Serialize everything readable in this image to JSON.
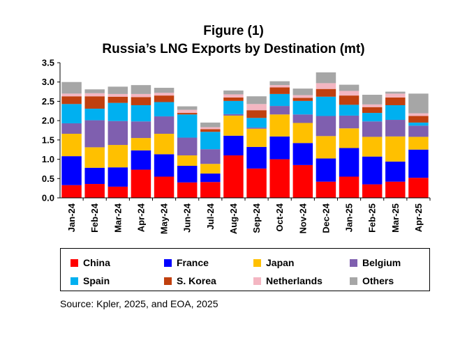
{
  "header": {
    "title": "Figure (1)",
    "subtitle": "Russia’s LNG Exports by Destination  (mt)"
  },
  "source": "Source: Kpler, 2025, and EOA, 2025",
  "chart_data": {
    "type": "bar",
    "stacked": true,
    "title": "Figure (1)",
    "subtitle": "Russia’s LNG Exports by Destination  (mt)",
    "xlabel": "",
    "ylabel": "",
    "ylim": [
      0,
      3.5
    ],
    "yticks": [
      "0.0",
      "0.5",
      "1.0",
      "1.5",
      "2.0",
      "2.5",
      "3.0",
      "3.5"
    ],
    "grid": false,
    "legend_position": "bottom",
    "categories": [
      "Jan-24",
      "Feb-24",
      "Mar-24",
      "Apr-24",
      "May-24",
      "Jun-24",
      "Jul-24",
      "Aug-24",
      "Sep-24",
      "Oct-24",
      "Nov-24",
      "Dec-24",
      "Jan-25",
      "Feb-25",
      "Mar-25",
      "Apr-25"
    ],
    "series": [
      {
        "name": "China",
        "color": "#ff0000",
        "values": [
          0.33,
          0.36,
          0.29,
          0.73,
          0.55,
          0.4,
          0.41,
          1.1,
          0.76,
          1.0,
          0.85,
          0.42,
          0.55,
          0.35,
          0.42,
          0.52
        ]
      },
      {
        "name": "France",
        "color": "#0000ff",
        "values": [
          0.75,
          0.42,
          0.5,
          0.5,
          0.58,
          0.43,
          0.22,
          0.51,
          0.56,
          0.59,
          0.57,
          0.6,
          0.74,
          0.72,
          0.52,
          0.73
        ]
      },
      {
        "name": "Japan",
        "color": "#ffc000",
        "values": [
          0.58,
          0.53,
          0.58,
          0.32,
          0.53,
          0.27,
          0.25,
          0.52,
          0.47,
          0.57,
          0.52,
          0.58,
          0.51,
          0.51,
          0.65,
          0.33
        ]
      },
      {
        "name": "Belgium",
        "color": "#7f5faf",
        "values": [
          0.27,
          0.7,
          0.62,
          0.43,
          0.45,
          0.46,
          0.38,
          0.04,
          0.03,
          0.22,
          0.22,
          0.52,
          0.33,
          0.4,
          0.43,
          0.29
        ]
      },
      {
        "name": "Spain",
        "color": "#00b0f0",
        "values": [
          0.5,
          0.3,
          0.47,
          0.42,
          0.37,
          0.6,
          0.45,
          0.34,
          0.25,
          0.31,
          0.35,
          0.5,
          0.28,
          0.22,
          0.38,
          0.08
        ]
      },
      {
        "name": "S. Korea",
        "color": "#c0400f",
        "values": [
          0.2,
          0.32,
          0.16,
          0.21,
          0.17,
          0.04,
          0.07,
          0.09,
          0.2,
          0.17,
          0.08,
          0.2,
          0.24,
          0.15,
          0.2,
          0.17
        ]
      },
      {
        "name": "Netherlands",
        "color": "#f4b6c2",
        "values": [
          0.07,
          0.08,
          0.07,
          0.08,
          0.07,
          0.08,
          0.05,
          0.08,
          0.16,
          0.06,
          0.07,
          0.15,
          0.12,
          0.07,
          0.1,
          0.07
        ]
      },
      {
        "name": "Others",
        "color": "#a6a6a6",
        "values": [
          0.3,
          0.1,
          0.19,
          0.23,
          0.13,
          0.09,
          0.12,
          0.1,
          0.2,
          0.1,
          0.17,
          0.28,
          0.16,
          0.25,
          0.05,
          0.51
        ]
      }
    ]
  }
}
